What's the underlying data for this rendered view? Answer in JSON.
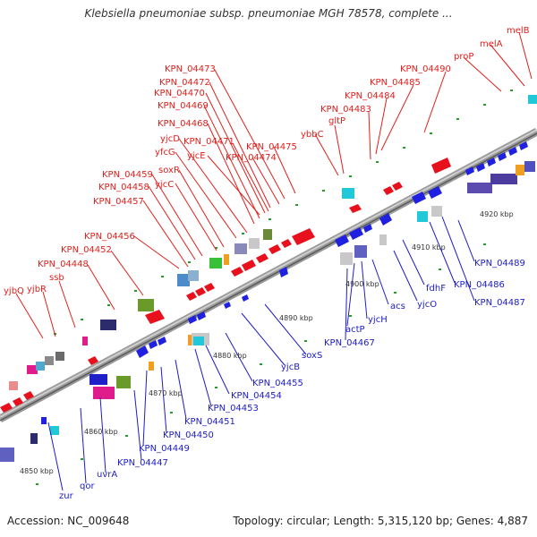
{
  "title": "Klebsiella pneumoniae subsp. pneumoniae MGH 78578, complete ...",
  "footer": {
    "accession": "Accession: NC_009648",
    "summary": "Topology: circular; Length: 5,315,120 bp; Genes: 4,887"
  },
  "scale_labels": [
    "4850 kbp",
    "4860 kbp",
    "4870 kbp",
    "4880 kbp",
    "4890 kbp",
    "4900 kbp",
    "4910 kbp",
    "4920 kbp"
  ],
  "top_labels": [
    "yjbQ",
    "yjbR",
    "ssb",
    "KPN_04448",
    "KPN_04452",
    "KPN_04456",
    "KPN_04457",
    "KPN_04458",
    "KPN_04459",
    "yjcC",
    "soxR",
    "yfcG",
    "yjcD",
    "KPN_04468",
    "KPN_04469",
    "KPN_04470",
    "KPN_04472",
    "KPN_04473",
    "yjcE",
    "KPN_04471",
    "KPN_04474",
    "KPN_04475",
    "ybbC",
    "gltP",
    "KPN_04483",
    "KPN_04484",
    "KPN_04485",
    "KPN_04490",
    "proP",
    "melA",
    "melB"
  ],
  "bottom_labels": [
    "zur",
    "qor",
    "uvrA",
    "KPN_04447",
    "KPN_04449",
    "KPN_04450",
    "KPN_04451",
    "KPN_04453",
    "KPN_04454",
    "KPN_04455",
    "yjcB",
    "soxS",
    "KPN_04467",
    "actP",
    "yjcH",
    "acs",
    "yjcO",
    "fdhF",
    "KPN_04486",
    "KPN_04487",
    "KPN_04489"
  ],
  "colors": {
    "forward": "#e8101c",
    "reverse": "#1010e0",
    "backbone": "#8a8a8a",
    "top_label": "#e0201c",
    "bottom_label": "#1c1cc8"
  }
}
